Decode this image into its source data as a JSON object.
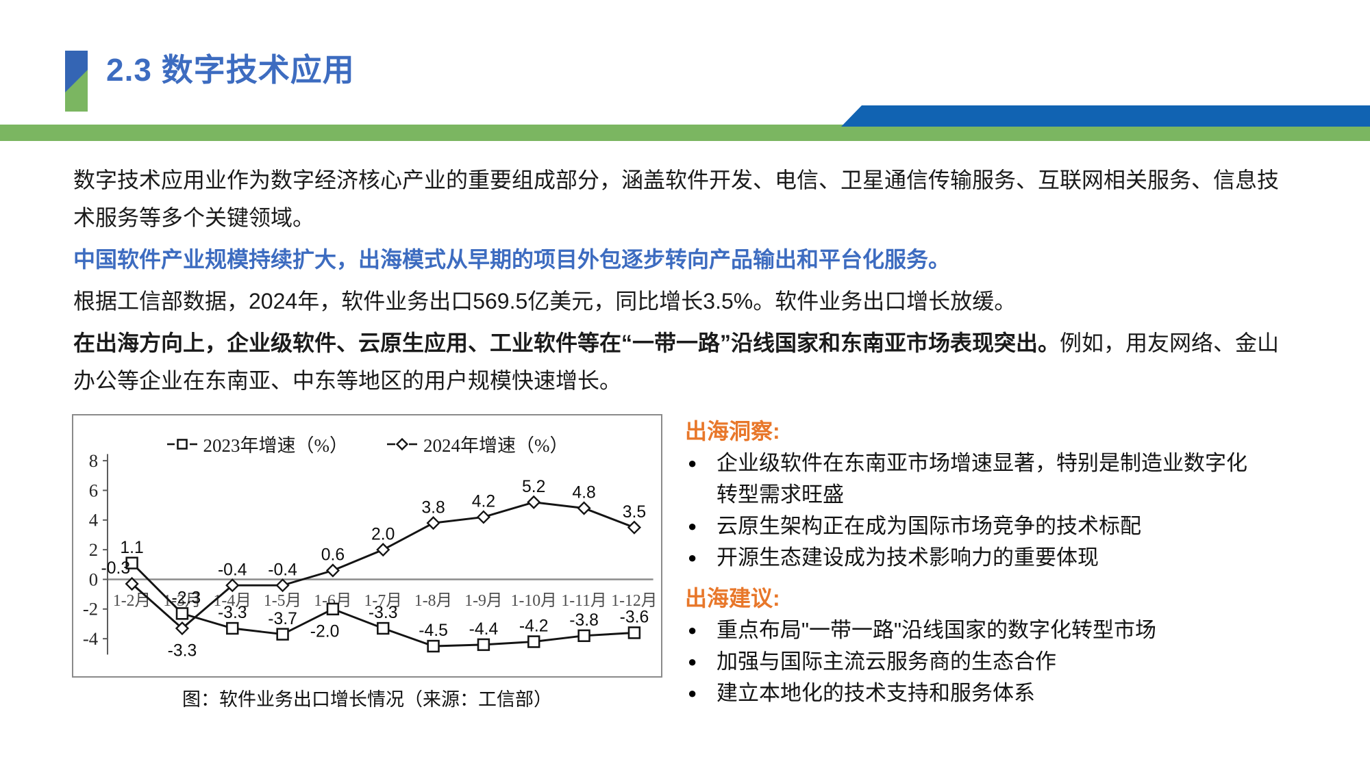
{
  "slide": {
    "title": "2.3 数字技术应用",
    "paragraph1": "数字技术应用业作为数字经济核心产业的重要组成部分，涵盖软件开发、电信、卫星通信传输服务、互联网相关服务、信息技术服务等多个关键领域。",
    "paragraph2": "中国软件产业规模持续扩大，出海模式从早期的项目外包逐步转向产品输出和平台化服务。",
    "paragraph3": "根据工信部数据，2024年，软件业务出口569.5亿美元，同比增长3.5%。软件业务出口增长放缓。",
    "paragraph4_bold": "在出海方向上，企业级软件、云原生应用、工业软件等在“一带一路”沿线国家和东南亚市场表现突出。",
    "paragraph4_normal": "例如，用友网络、金山办公等企业在东南亚、中东等地区的用户规模快速增长。"
  },
  "chart_data": {
    "type": "line",
    "title": "",
    "caption": "图：软件业务出口增长情况（来源：工信部）",
    "categories": [
      "1-2月",
      "1-3月",
      "1-4月",
      "1-5月",
      "1-6月",
      "1-7月",
      "1-8月",
      "1-9月",
      "1-10月",
      "1-11月",
      "1-12月"
    ],
    "series": [
      {
        "name": "2023年增速（%）",
        "marker": "square",
        "values": [
          1.1,
          -2.3,
          -3.3,
          -3.7,
          -2.0,
          -3.3,
          -4.5,
          -4.4,
          -4.2,
          -3.8,
          -3.6
        ],
        "label_pos": [
          "above",
          "above",
          "above",
          "above",
          "below",
          "above",
          "above",
          "above",
          "above",
          "above",
          "above"
        ],
        "label_dx": [
          0,
          6,
          0,
          0,
          -12,
          0,
          0,
          0,
          0,
          0,
          0
        ]
      },
      {
        "name": "2024年增速（%）",
        "marker": "diamond",
        "values": [
          -0.3,
          -3.3,
          -0.4,
          -0.4,
          0.6,
          2.0,
          3.8,
          4.2,
          5.2,
          4.8,
          3.5
        ],
        "label_pos": [
          "above",
          "below",
          "above",
          "above",
          "above",
          "above",
          "above",
          "above",
          "above",
          "above",
          "above"
        ],
        "label_dx": [
          -24,
          0,
          0,
          0,
          0,
          0,
          0,
          0,
          0,
          0,
          0
        ]
      }
    ],
    "yticks": [
      8,
      6,
      4,
      2,
      0,
      -2,
      -4
    ],
    "ylim": [
      -5.2,
      8.8
    ],
    "grid": false,
    "legend_position": "top",
    "xlabel": "",
    "ylabel": ""
  },
  "insights": {
    "heading": "出海洞察:",
    "items": [
      "企业级软件在东南亚市场增速显著，特别是制造业数字化转型需求旺盛",
      "云原生架构正在成为国际市场竞争的技术标配",
      "开源生态建设成为技术影响力的重要体现"
    ]
  },
  "suggestions": {
    "heading": "出海建议:",
    "items": [
      "重点布局\"一带一路\"沿线国家的数字化转型市场",
      "加强与国际主流云服务商的生态合作",
      "建立本地化的技术支持和服务体系"
    ]
  },
  "colors": {
    "title_blue": "#3D6CC0",
    "accent_blue": "#3465B4",
    "bar_blue": "#1163B2",
    "bar_green": "#7BB661",
    "heading_orange": "#E8772A",
    "line_black": "#141414",
    "zero_line_gray": "#8c8c8c"
  }
}
